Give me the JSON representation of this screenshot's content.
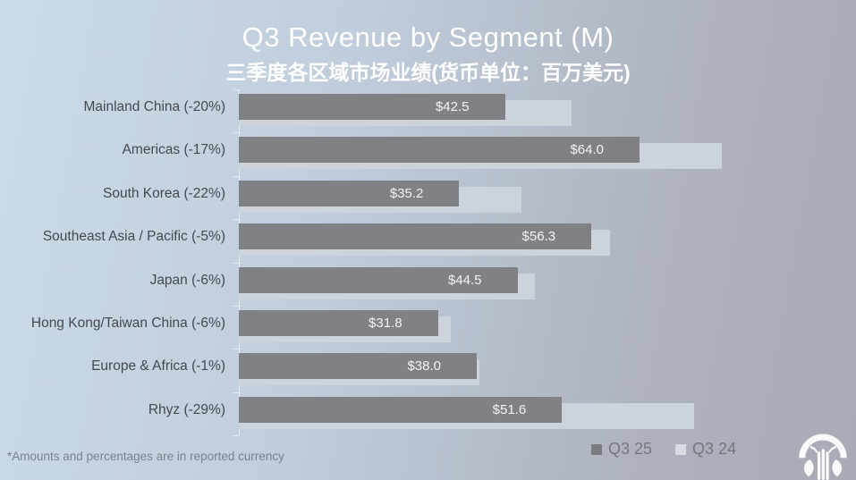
{
  "title": "Q3 Revenue by Segment (M)",
  "subtitle": "三季度各区域市场业绩(货币单位：百万美元)",
  "footnote": "*Amounts and percentages are in reported currency",
  "legend": [
    {
      "label": "Q3 25",
      "color": "#7a7c80"
    },
    {
      "label": "Q3 24",
      "color": "#d9dde2"
    }
  ],
  "colors": {
    "background_left": "#c8d7e4",
    "background_right": "#a8abb6",
    "title_text": "#ffffff",
    "category_text": "#45484d",
    "bar_q3_25": "#7f8184",
    "bar_q3_24": "#cdd3da",
    "value_text": "#f3f4f6",
    "legend_text": "#75787d",
    "footnote_text": "#7b818a"
  },
  "logo_icon": "fountain-emblem",
  "chart_data": {
    "type": "bar",
    "orientation": "horizontal",
    "title": "Q3 Revenue by Segment (M)",
    "subtitle_cn": "三季度各区域市场业绩(货币单位：百万美元)",
    "categories": [
      "Mainland China (-20%)",
      "Americas (-17%)",
      "South Korea (-22%)",
      "Southeast Asia / Pacific (-5%)",
      "Japan (-6%)",
      "Hong Kong/Taiwan China (-6%)",
      "Europe & Africa (-1%)",
      "Rhyz (-29%)"
    ],
    "pct_change": [
      -20,
      -17,
      -22,
      -5,
      -6,
      -6,
      -1,
      -29
    ],
    "series": [
      {
        "name": "Q3 25",
        "values": [
          42.5,
          64.0,
          35.2,
          56.3,
          44.5,
          31.8,
          38.0,
          51.6
        ],
        "value_labels": [
          "$42.5",
          "$64.0",
          "$35.2",
          "$56.3",
          "$44.5",
          "$31.8",
          "$38.0",
          "$51.6"
        ],
        "color": "#7f8184"
      },
      {
        "name": "Q3 24",
        "values_estimated": [
          53.1,
          77.1,
          45.1,
          59.3,
          47.3,
          33.8,
          38.4,
          72.7
        ],
        "value_labels": [],
        "color": "#cdd3da"
      }
    ],
    "xlim": [
      0,
      80
    ],
    "unit": "USD millions",
    "value_prefix": "$",
    "grid": false,
    "legend_position": "bottom-right"
  }
}
